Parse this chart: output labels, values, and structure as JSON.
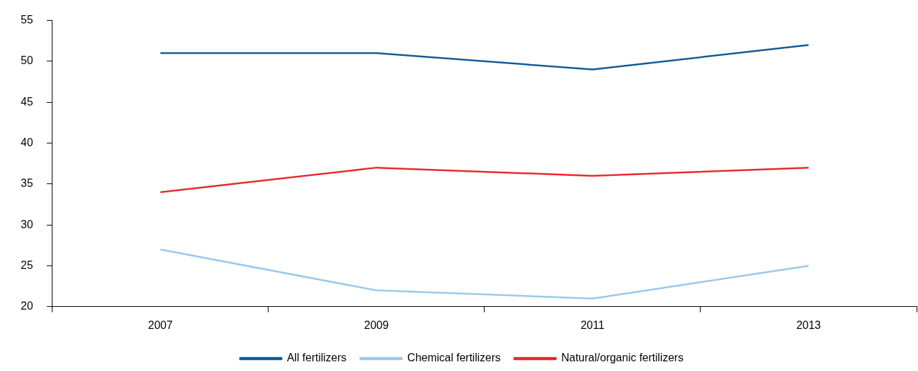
{
  "chart_data": {
    "type": "line",
    "categories": [
      "2007",
      "2009",
      "2011",
      "2013"
    ],
    "series": [
      {
        "name": "All fertilizers",
        "color": "#0f5a96",
        "values": [
          51,
          51,
          49,
          52
        ]
      },
      {
        "name": "Chemical fertilizers",
        "color": "#9ac8ec",
        "values": [
          27,
          22,
          21,
          25
        ]
      },
      {
        "name": "Natural/organic fertilizers",
        "color": "#e8282b",
        "values": [
          34,
          37,
          36,
          37
        ]
      }
    ],
    "ylim": [
      20,
      55
    ],
    "yticks": [
      20,
      25,
      30,
      35,
      40,
      45,
      50,
      55
    ],
    "grid": false,
    "legend": "bottom",
    "marker": "none",
    "line_style": "solid"
  }
}
